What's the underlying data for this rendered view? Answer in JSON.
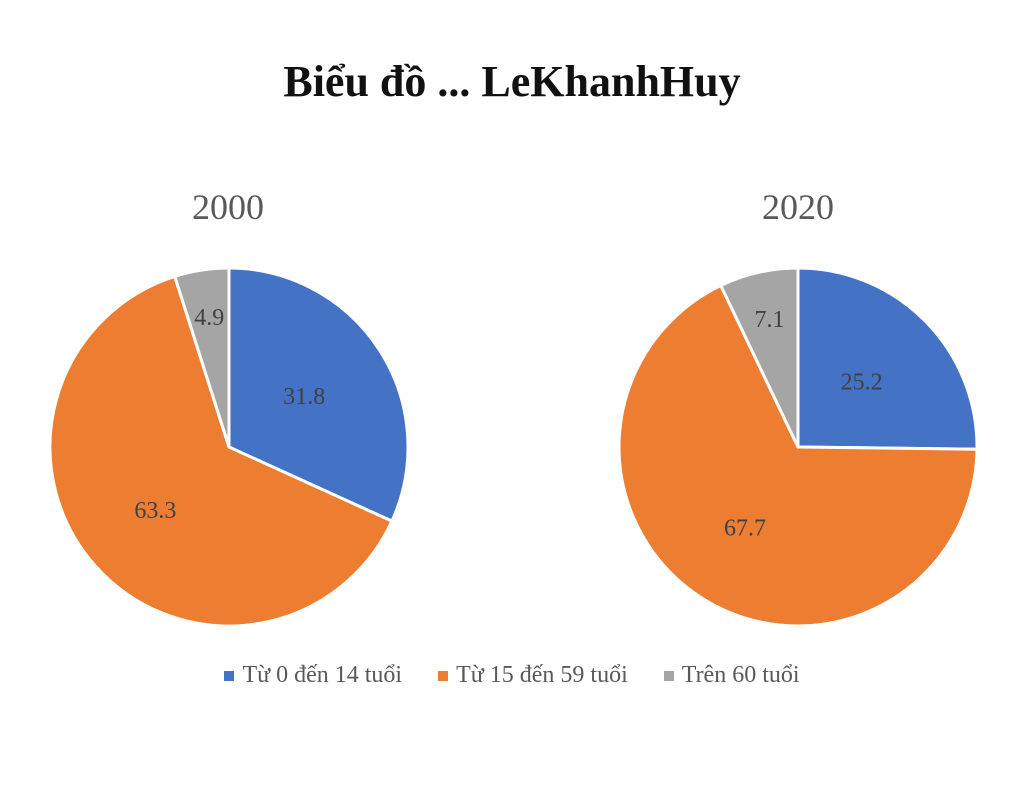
{
  "title": "Biểu đồ ... LeKhanhHuy",
  "chart_data": [
    {
      "type": "pie",
      "title": "2000",
      "categories": [
        "Từ 0 đến 14 tuổi",
        "Từ 15 đến 59 tuổi",
        "Trên 60 tuổi"
      ],
      "values": [
        31.8,
        63.3,
        4.9
      ],
      "colors": [
        "#4472C4",
        "#ED7D31",
        "#A5A5A5"
      ],
      "data_labels": [
        "31.8",
        "63.3",
        "4.9"
      ]
    },
    {
      "type": "pie",
      "title": "2020",
      "categories": [
        "Từ 0 đến 14 tuổi",
        "Từ 15 đến 59 tuổi",
        "Trên 60 tuổi"
      ],
      "values": [
        25.2,
        67.7,
        7.1
      ],
      "colors": [
        "#4472C4",
        "#ED7D31",
        "#A5A5A5"
      ],
      "data_labels": [
        "25.2",
        "67.7",
        "7.1"
      ]
    }
  ],
  "legend": {
    "placement": "bottom",
    "items": [
      {
        "label": "Từ 0 đến 14 tuổi",
        "color": "#4472C4"
      },
      {
        "label": "Từ 15 đến 59 tuổi",
        "color": "#ED7D31"
      },
      {
        "label": "Trên 60 tuổi",
        "color": "#A5A5A5"
      }
    ]
  }
}
